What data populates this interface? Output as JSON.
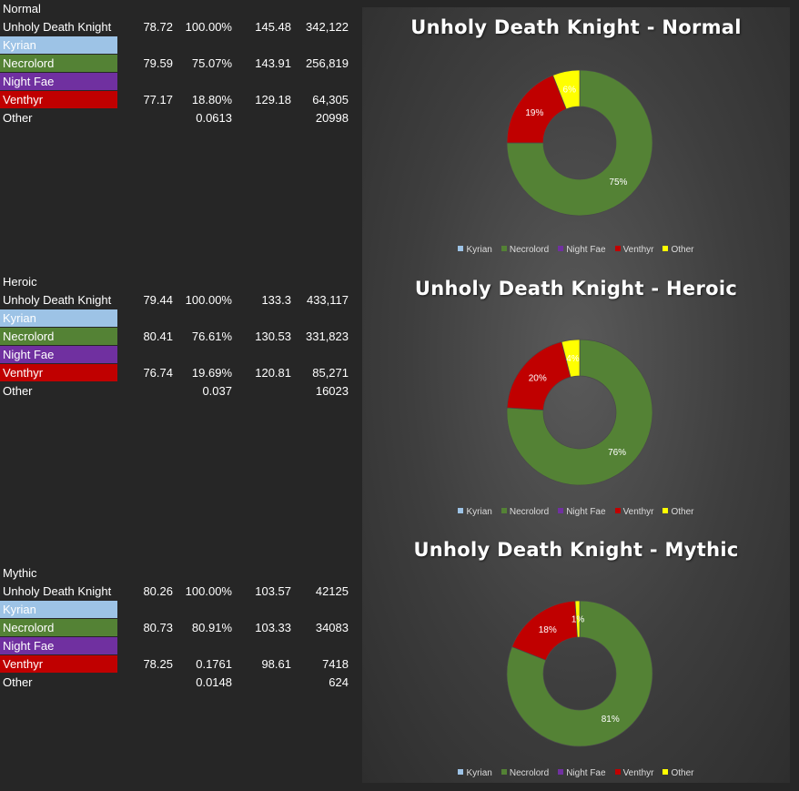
{
  "colors": {
    "kyrian": "#9dc3e6",
    "necrolord": "#548235",
    "night_fae": "#7030a0",
    "venthyr": "#c00000",
    "other": "#ffff00"
  },
  "sections": [
    {
      "title": "Normal",
      "rows": [
        {
          "name": "Unholy Death Knight",
          "c1": "78.72",
          "c2": "100.00%",
          "c3": "145.48",
          "c4": "342,122"
        },
        {
          "name": "Kyrian",
          "c1": "",
          "c2": "",
          "c3": "",
          "c4": ""
        },
        {
          "name": "Necrolord",
          "c1": "79.59",
          "c2": "75.07%",
          "c3": "143.91",
          "c4": "256,819"
        },
        {
          "name": "Night Fae",
          "c1": "",
          "c2": "",
          "c3": "",
          "c4": ""
        },
        {
          "name": "Venthyr",
          "c1": "77.17",
          "c2": "18.80%",
          "c3": "129.18",
          "c4": "64,305"
        },
        {
          "name": "Other",
          "c1": "",
          "c2": "0.0613",
          "c3": "",
          "c4": "20998"
        }
      ]
    },
    {
      "title": "Heroic",
      "rows": [
        {
          "name": "Unholy Death Knight",
          "c1": "79.44",
          "c2": "100.00%",
          "c3": "133.3",
          "c4": "433,117"
        },
        {
          "name": "Kyrian",
          "c1": "",
          "c2": "",
          "c3": "",
          "c4": ""
        },
        {
          "name": "Necrolord",
          "c1": "80.41",
          "c2": "76.61%",
          "c3": "130.53",
          "c4": "331,823"
        },
        {
          "name": "Night Fae",
          "c1": "",
          "c2": "",
          "c3": "",
          "c4": ""
        },
        {
          "name": "Venthyr",
          "c1": "76.74",
          "c2": "19.69%",
          "c3": "120.81",
          "c4": "85,271"
        },
        {
          "name": "Other",
          "c1": "",
          "c2": "0.037",
          "c3": "",
          "c4": "16023"
        }
      ]
    },
    {
      "title": "Mythic",
      "rows": [
        {
          "name": "Unholy Death Knight",
          "c1": "80.26",
          "c2": "100.00%",
          "c3": "103.57",
          "c4": "42125"
        },
        {
          "name": "Kyrian",
          "c1": "",
          "c2": "",
          "c3": "",
          "c4": ""
        },
        {
          "name": "Necrolord",
          "c1": "80.73",
          "c2": "80.91%",
          "c3": "103.33",
          "c4": "34083"
        },
        {
          "name": "Night Fae",
          "c1": "",
          "c2": "",
          "c3": "",
          "c4": ""
        },
        {
          "name": "Venthyr",
          "c1": "78.25",
          "c2": "0.1761",
          "c3": "98.61",
          "c4": "7418"
        },
        {
          "name": "Other",
          "c1": "",
          "c2": "0.0148",
          "c3": "",
          "c4": "624"
        }
      ]
    }
  ],
  "chart_data": [
    {
      "type": "pie",
      "title": "Unholy Death Knight - Normal",
      "categories": [
        "Kyrian",
        "Necrolord",
        "Night Fae",
        "Venthyr",
        "Other"
      ],
      "values": [
        0,
        75,
        0,
        19,
        6
      ],
      "data_labels": [
        "",
        "75%",
        "",
        "19%",
        "6%"
      ],
      "legend_position": "bottom"
    },
    {
      "type": "pie",
      "title": "Unholy Death Knight - Heroic",
      "categories": [
        "Kyrian",
        "Necrolord",
        "Night Fae",
        "Venthyr",
        "Other"
      ],
      "values": [
        0,
        76,
        0,
        20,
        4
      ],
      "data_labels": [
        "",
        "76%",
        "",
        "20%",
        "4%"
      ],
      "legend_position": "bottom"
    },
    {
      "type": "pie",
      "title": "Unholy Death Knight - Mythic",
      "categories": [
        "Kyrian",
        "Necrolord",
        "Night Fae",
        "Venthyr",
        "Other"
      ],
      "values": [
        0,
        81,
        0,
        18,
        1
      ],
      "data_labels": [
        "",
        "81%",
        "",
        "18%",
        "1%"
      ],
      "legend_position": "bottom"
    }
  ]
}
